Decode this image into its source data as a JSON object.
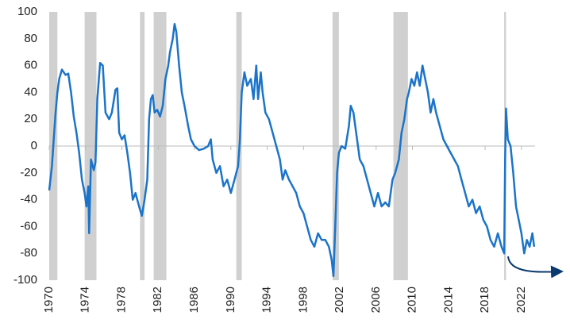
{
  "chart_data": {
    "type": "line",
    "xlim": [
      1970,
      2023.5
    ],
    "ylim": [
      -100,
      100
    ],
    "yticks": [
      -100,
      -80,
      -60,
      -40,
      -20,
      0,
      20,
      40,
      60,
      80,
      100
    ],
    "xticks": [
      1970,
      1974,
      1978,
      1982,
      1986,
      1990,
      1994,
      1998,
      2002,
      2006,
      2010,
      2014,
      2018,
      2022
    ],
    "recessions": [
      [
        1970.0,
        1970.9
      ],
      [
        1973.9,
        1975.2
      ],
      [
        1980.0,
        1980.5
      ],
      [
        1981.5,
        1982.9
      ],
      [
        1990.6,
        1991.2
      ],
      [
        2001.2,
        2001.9
      ],
      [
        2007.9,
        2009.5
      ],
      [
        2020.1,
        2020.3
      ]
    ],
    "recession_color": "#d0d0d0",
    "series": [
      {
        "color": "#1b74c9",
        "x": [
          1970.0,
          1970.3,
          1970.5,
          1970.7,
          1970.9,
          1971.1,
          1971.4,
          1971.8,
          1972.1,
          1972.4,
          1972.7,
          1973.0,
          1973.3,
          1973.6,
          1973.9,
          1974.1,
          1974.3,
          1974.4,
          1974.6,
          1974.9,
          1975.1,
          1975.3,
          1975.6,
          1975.9,
          1976.2,
          1976.6,
          1976.9,
          1977.3,
          1977.5,
          1977.7,
          1978.0,
          1978.3,
          1978.6,
          1978.9,
          1979.2,
          1979.5,
          1979.9,
          1980.2,
          1980.5,
          1980.8,
          1981.0,
          1981.2,
          1981.4,
          1981.6,
          1981.9,
          1982.2,
          1982.5,
          1982.8,
          1983.1,
          1983.3,
          1983.6,
          1983.8,
          1984.0,
          1984.3,
          1984.6,
          1984.9,
          1985.3,
          1985.6,
          1986.0,
          1986.5,
          1987.0,
          1987.5,
          1987.8,
          1988.0,
          1988.4,
          1988.8,
          1989.2,
          1989.6,
          1990.0,
          1990.4,
          1990.8,
          1991.0,
          1991.2,
          1991.5,
          1991.8,
          1992.2,
          1992.5,
          1992.8,
          1993.0,
          1993.3,
          1993.5,
          1993.8,
          1994.2,
          1994.6,
          1995.0,
          1995.4,
          1995.7,
          1996.0,
          1996.4,
          1996.8,
          1997.2,
          1997.6,
          1998.0,
          1998.4,
          1998.8,
          1999.2,
          1999.6,
          2000.0,
          2000.4,
          2000.8,
          2001.1,
          2001.3,
          2001.5,
          2001.7,
          2001.9,
          2002.2,
          2002.6,
          2003.0,
          2003.2,
          2003.5,
          2003.8,
          2004.2,
          2004.6,
          2005.0,
          2005.4,
          2005.8,
          2006.2,
          2006.6,
          2007.0,
          2007.4,
          2007.8,
          2008.1,
          2008.5,
          2008.8,
          2009.1,
          2009.4,
          2009.6,
          2009.9,
          2010.2,
          2010.5,
          2010.8,
          2011.1,
          2011.4,
          2011.7,
          2012.0,
          2012.3,
          2012.6,
          2013.0,
          2013.4,
          2013.8,
          2014.2,
          2014.6,
          2015.0,
          2015.4,
          2015.8,
          2016.2,
          2016.6,
          2017.0,
          2017.4,
          2017.8,
          2018.2,
          2018.6,
          2019.0,
          2019.4,
          2019.8,
          2020.1,
          2020.2,
          2020.3,
          2020.5,
          2020.8,
          2021.1,
          2021.4,
          2021.7,
          2022.0,
          2022.3,
          2022.6,
          2022.9,
          2023.2,
          2023.4
        ],
        "values": [
          -33,
          -15,
          5,
          25,
          40,
          50,
          57,
          53,
          54,
          40,
          22,
          10,
          -5,
          -25,
          -35,
          -45,
          -30,
          -65,
          -10,
          -18,
          -12,
          35,
          62,
          60,
          25,
          20,
          25,
          42,
          43,
          10,
          5,
          8,
          -5,
          -20,
          -40,
          -35,
          -45,
          -52,
          -40,
          -25,
          20,
          35,
          38,
          25,
          27,
          22,
          30,
          50,
          60,
          70,
          80,
          91,
          85,
          60,
          40,
          30,
          15,
          5,
          0,
          -3,
          -2,
          0,
          5,
          -10,
          -20,
          -15,
          -30,
          -25,
          -35,
          -25,
          -15,
          5,
          40,
          55,
          45,
          50,
          35,
          60,
          35,
          55,
          40,
          25,
          20,
          10,
          0,
          -10,
          -25,
          -18,
          -25,
          -30,
          -35,
          -45,
          -50,
          -60,
          -70,
          -75,
          -65,
          -70,
          -70,
          -75,
          -85,
          -97,
          -60,
          -20,
          -5,
          0,
          -2,
          15,
          30,
          25,
          10,
          -10,
          -15,
          -25,
          -35,
          -45,
          -35,
          -45,
          -42,
          -45,
          -25,
          -20,
          -10,
          10,
          20,
          35,
          40,
          50,
          45,
          55,
          45,
          60,
          50,
          40,
          25,
          35,
          25,
          15,
          5,
          0,
          -5,
          -10,
          -15,
          -25,
          -35,
          -45,
          -40,
          -50,
          -45,
          -55,
          -60,
          -70,
          -75,
          -65,
          -75,
          -80,
          -10,
          28,
          5,
          0,
          -20,
          -45,
          -55,
          -65,
          -80,
          -70,
          -75,
          -65,
          -75
        ]
      }
    ]
  }
}
